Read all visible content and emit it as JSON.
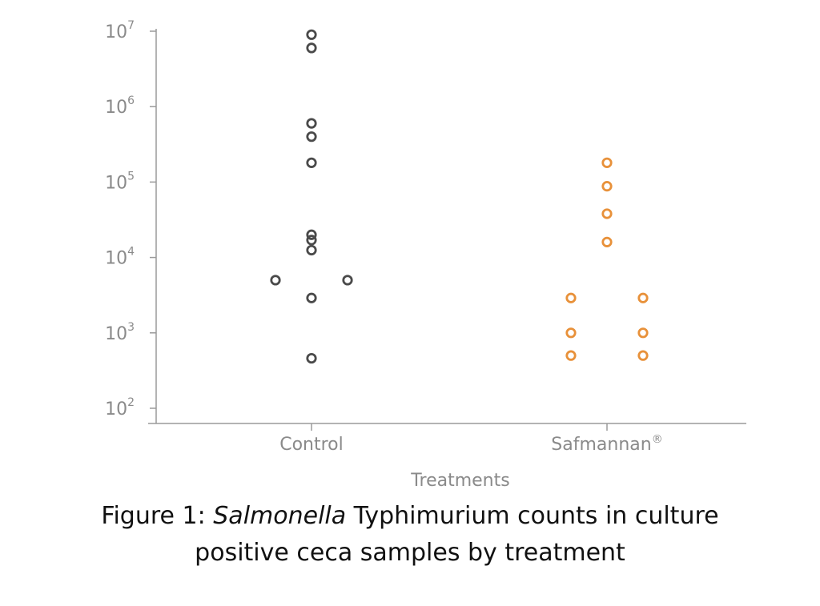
{
  "chart_data": {
    "type": "scatter",
    "title": "",
    "xlabel": "Treatments",
    "ylabel": "",
    "yscale": "log",
    "ylim_log10": [
      2,
      7
    ],
    "yticks": [
      {
        "base": "10",
        "exp": "2",
        "value": 100
      },
      {
        "base": "10",
        "exp": "3",
        "value": 1000
      },
      {
        "base": "10",
        "exp": "4",
        "value": 10000
      },
      {
        "base": "10",
        "exp": "5",
        "value": 100000
      },
      {
        "base": "10",
        "exp": "6",
        "value": 1000000
      },
      {
        "base": "10",
        "exp": "7",
        "value": 10000000
      }
    ],
    "categories": [
      {
        "name": "Control",
        "superscript": ""
      },
      {
        "name": "Safmannan",
        "superscript": "®"
      }
    ],
    "series": [
      {
        "name": "Control",
        "category": 0,
        "color": "#4a4a4a",
        "points": [
          {
            "value": 9000000,
            "offset": 0
          },
          {
            "value": 6000000,
            "offset": 0
          },
          {
            "value": 600000,
            "offset": 0
          },
          {
            "value": 400000,
            "offset": 0
          },
          {
            "value": 180000,
            "offset": 0
          },
          {
            "value": 20000,
            "offset": 0
          },
          {
            "value": 17000,
            "offset": 0
          },
          {
            "value": 12500,
            "offset": 0
          },
          {
            "value": 5000,
            "offset": -1
          },
          {
            "value": 5000,
            "offset": 1
          },
          {
            "value": 2900,
            "offset": 0
          },
          {
            "value": 460,
            "offset": 0
          }
        ]
      },
      {
        "name": "Safmannan",
        "category": 1,
        "color": "#e8913a",
        "points": [
          {
            "value": 180000,
            "offset": 0
          },
          {
            "value": 88000,
            "offset": 0
          },
          {
            "value": 38000,
            "offset": 0
          },
          {
            "value": 16000,
            "offset": 0
          },
          {
            "value": 2900,
            "offset": -1
          },
          {
            "value": 2900,
            "offset": 1
          },
          {
            "value": 1000,
            "offset": -1
          },
          {
            "value": 1000,
            "offset": 1
          },
          {
            "value": 500,
            "offset": -1
          },
          {
            "value": 500,
            "offset": 1
          }
        ]
      }
    ]
  },
  "caption": {
    "prefix": "Figure 1: ",
    "italic": "Salmonella",
    "line1_rest": " Typhimurium counts in culture",
    "line2": "positive ceca samples by treatment"
  }
}
